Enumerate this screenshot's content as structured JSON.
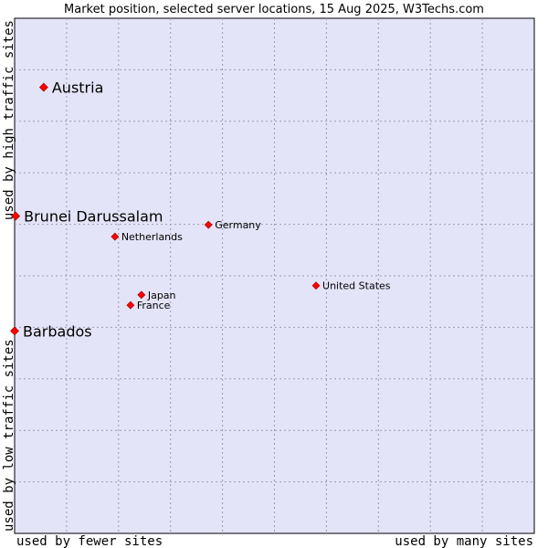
{
  "chart_data": {
    "type": "scatter",
    "title": "Market position, selected server locations, 15 Aug 2025, W3Techs.com",
    "xlabel_left": "used by fewer sites",
    "xlabel_right": "used by many sites",
    "ylabel_bottom": "used by low traffic sites",
    "ylabel_top": "used by high traffic sites",
    "xlim": [
      0,
      100
    ],
    "ylim": [
      0,
      100
    ],
    "grid": true,
    "colors": {
      "plot_bg": "#e4e4f8",
      "point": "#ff0000",
      "grid": "#9a9ab4"
    },
    "points": [
      {
        "label": "Austria",
        "x": 5.6,
        "y": 86.6,
        "emphasis": true
      },
      {
        "label": "Brunei Darussalam",
        "x": 0.2,
        "y": 61.6,
        "emphasis": true
      },
      {
        "label": "Barbados",
        "x": 0.0,
        "y": 39.3,
        "emphasis": true
      },
      {
        "label": "Germany",
        "x": 37.3,
        "y": 59.9,
        "emphasis": false
      },
      {
        "label": "Netherlands",
        "x": 19.3,
        "y": 57.6,
        "emphasis": false
      },
      {
        "label": "United States",
        "x": 58.0,
        "y": 48.1,
        "emphasis": false
      },
      {
        "label": "Japan",
        "x": 24.4,
        "y": 46.3,
        "emphasis": false
      },
      {
        "label": "France",
        "x": 22.3,
        "y": 44.3,
        "emphasis": false
      }
    ]
  }
}
